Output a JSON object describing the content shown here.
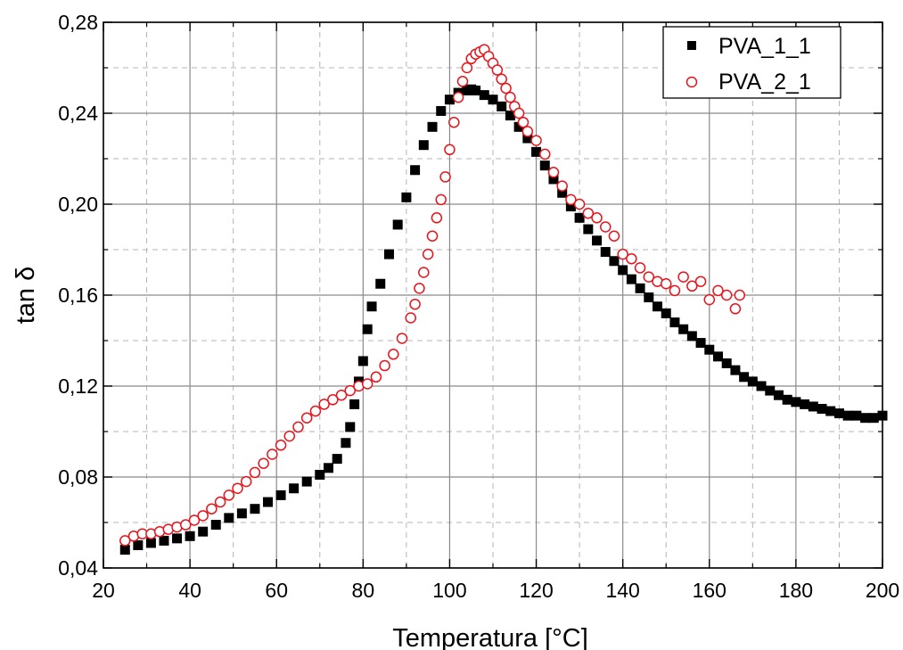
{
  "chart_data": {
    "type": "scatter",
    "xlabel": "Temperatura [°C]",
    "ylabel": "tan δ",
    "xlim": [
      20,
      200
    ],
    "ylim": [
      0.04,
      0.28
    ],
    "x_ticks": [
      20,
      40,
      60,
      80,
      100,
      120,
      140,
      160,
      180,
      200
    ],
    "x_tick_labels": [
      "20",
      "40",
      "60",
      "80",
      "100",
      "120",
      "140",
      "160",
      "180",
      "200"
    ],
    "y_ticks": [
      0.04,
      0.08,
      0.12,
      0.16,
      0.2,
      0.24,
      0.28
    ],
    "y_tick_labels": [
      "0,04",
      "0,08",
      "0,12",
      "0,16",
      "0,20",
      "0,24",
      "0,28"
    ],
    "grid": true,
    "legend_position": "top-right",
    "series": [
      {
        "name": "PVA_1_1",
        "marker": "filled-square",
        "color": "#000000",
        "x": [
          25,
          28,
          31,
          34,
          37,
          40,
          43,
          46,
          49,
          52,
          55,
          58,
          61,
          64,
          67,
          70,
          72,
          74,
          76,
          77,
          78,
          79,
          80,
          81,
          82,
          84,
          86,
          88,
          90,
          92,
          94,
          96,
          98,
          100,
          102,
          104,
          105,
          106,
          108,
          110,
          112,
          114,
          116,
          118,
          120,
          122,
          124,
          126,
          128,
          130,
          132,
          134,
          136,
          138,
          140,
          142,
          144,
          146,
          148,
          150,
          152,
          154,
          156,
          158,
          160,
          162,
          164,
          166,
          168,
          170,
          172,
          174,
          176,
          178,
          180,
          182,
          184,
          186,
          188,
          190,
          192,
          194,
          196,
          198,
          200
        ],
        "y": [
          0.048,
          0.05,
          0.051,
          0.052,
          0.053,
          0.054,
          0.056,
          0.059,
          0.062,
          0.064,
          0.066,
          0.069,
          0.072,
          0.075,
          0.078,
          0.081,
          0.084,
          0.088,
          0.095,
          0.102,
          0.112,
          0.122,
          0.131,
          0.145,
          0.155,
          0.165,
          0.178,
          0.191,
          0.203,
          0.215,
          0.226,
          0.234,
          0.241,
          0.246,
          0.249,
          0.25,
          0.2505,
          0.25,
          0.248,
          0.246,
          0.243,
          0.239,
          0.234,
          0.229,
          0.223,
          0.217,
          0.211,
          0.205,
          0.199,
          0.194,
          0.189,
          0.184,
          0.179,
          0.175,
          0.171,
          0.167,
          0.163,
          0.159,
          0.155,
          0.152,
          0.148,
          0.145,
          0.142,
          0.139,
          0.136,
          0.133,
          0.13,
          0.127,
          0.124,
          0.122,
          0.12,
          0.118,
          0.116,
          0.114,
          0.113,
          0.112,
          0.111,
          0.11,
          0.109,
          0.108,
          0.107,
          0.107,
          0.106,
          0.106,
          0.107
        ]
      },
      {
        "name": "PVA_2_1",
        "marker": "open-circle",
        "color": "#e8141c",
        "x": [
          25,
          27,
          29,
          31,
          33,
          35,
          37,
          39,
          41,
          43,
          45,
          47,
          49,
          51,
          53,
          55,
          57,
          59,
          61,
          63,
          65,
          67,
          69,
          71,
          73,
          75,
          77,
          79,
          81,
          83,
          85,
          87,
          89,
          91,
          92,
          93,
          94,
          95,
          96,
          97,
          98,
          99,
          100,
          101,
          102,
          103,
          104,
          105,
          106,
          107,
          108,
          109,
          110,
          111,
          112,
          113,
          114,
          115,
          116,
          117,
          118,
          120,
          122,
          124,
          126,
          128,
          130,
          132,
          134,
          136,
          138,
          140,
          142,
          144,
          146,
          148,
          150,
          152,
          154,
          156,
          158,
          160,
          162,
          164,
          166,
          167
        ],
        "y": [
          0.052,
          0.054,
          0.055,
          0.055,
          0.056,
          0.057,
          0.058,
          0.059,
          0.061,
          0.063,
          0.066,
          0.069,
          0.072,
          0.075,
          0.078,
          0.082,
          0.086,
          0.09,
          0.094,
          0.098,
          0.102,
          0.106,
          0.109,
          0.112,
          0.114,
          0.116,
          0.118,
          0.12,
          0.121,
          0.124,
          0.129,
          0.134,
          0.141,
          0.15,
          0.156,
          0.163,
          0.17,
          0.178,
          0.186,
          0.194,
          0.202,
          0.212,
          0.224,
          0.236,
          0.247,
          0.254,
          0.26,
          0.264,
          0.266,
          0.267,
          0.268,
          0.265,
          0.262,
          0.259,
          0.255,
          0.251,
          0.247,
          0.243,
          0.24,
          0.236,
          0.232,
          0.228,
          0.222,
          0.214,
          0.208,
          0.202,
          0.2,
          0.196,
          0.194,
          0.19,
          0.186,
          0.178,
          0.176,
          0.172,
          0.168,
          0.166,
          0.165,
          0.162,
          0.168,
          0.164,
          0.166,
          0.158,
          0.162,
          0.16,
          0.154,
          0.16
        ]
      }
    ]
  }
}
